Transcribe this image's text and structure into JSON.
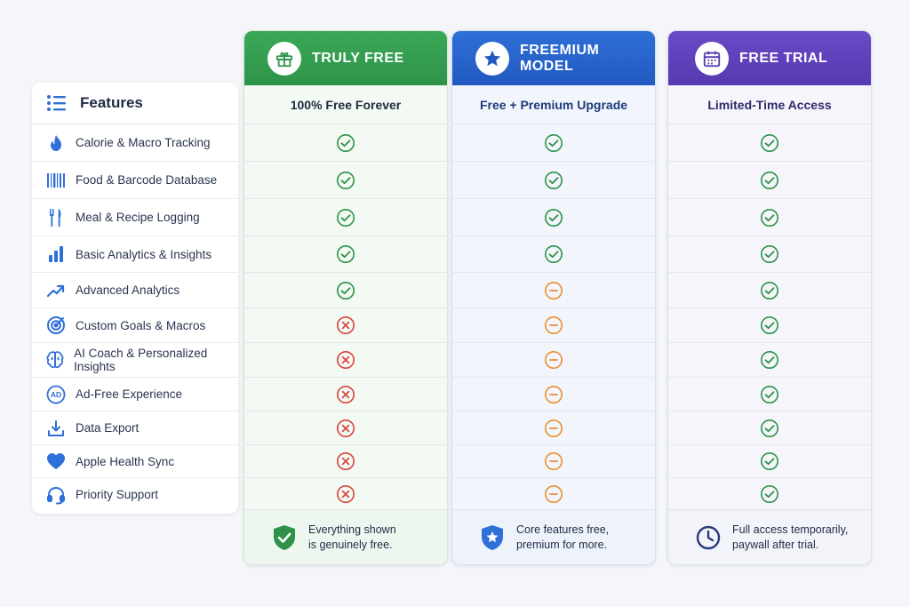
{
  "features": {
    "title": "Features",
    "rows": [
      {
        "label": "Calorie & Macro Tracking",
        "icon": "flame-icon"
      },
      {
        "label": "Food & Barcode Database",
        "icon": "barcode-icon"
      },
      {
        "label": "Meal & Recipe Logging",
        "icon": "fork-knife-icon"
      },
      {
        "label": "Basic Analytics & Insights",
        "icon": "bar-chart-icon"
      },
      {
        "label": "Advanced Analytics",
        "icon": "trend-up-icon"
      },
      {
        "label": "Custom Goals & Macros",
        "icon": "target-icon"
      },
      {
        "label": "AI Coach & Personalized Insights",
        "icon": "brain-icon"
      },
      {
        "label": "Ad-Free Experience",
        "icon": "ad-icon",
        "icon_text": "AD"
      },
      {
        "label": "Data Export",
        "icon": "download-icon"
      },
      {
        "label": "Apple Health Sync",
        "icon": "heart-icon"
      },
      {
        "label": "Priority Support",
        "icon": "headset-icon"
      }
    ]
  },
  "plans": {
    "free": {
      "title": "TRULY FREE",
      "subtitle": "100% Free Forever",
      "icon": "gift-icon",
      "color": "#2e9349",
      "status": [
        "check",
        "check",
        "check",
        "check",
        "check",
        "cross",
        "cross",
        "cross",
        "cross",
        "cross",
        "cross"
      ],
      "footer_line1": "Everything shown",
      "footer_line2": "is genuinely free.",
      "footer_icon": "shield-check-icon"
    },
    "freemium": {
      "title": "FREEMIUM MODEL",
      "subtitle": "Free + Premium Upgrade",
      "icon": "star-icon",
      "color": "#2159c0",
      "status": [
        "check",
        "check",
        "check",
        "check",
        "partial",
        "partial",
        "partial",
        "partial",
        "partial",
        "partial",
        "partial"
      ],
      "footer_line1": "Core features free,",
      "footer_line2": "premium for more.",
      "footer_icon": "shield-star-icon"
    },
    "trial": {
      "title": "FREE TRIAL",
      "subtitle": "Limited-Time Access",
      "icon": "calendar-icon",
      "color": "#5638b0",
      "status": [
        "check",
        "check",
        "check",
        "check",
        "check",
        "check",
        "check",
        "check",
        "check",
        "check",
        "check"
      ],
      "footer_line1": "Full access temporarily,",
      "footer_line2": "paywall after trial.",
      "footer_icon": "clock-icon"
    }
  },
  "colors": {
    "check": "#2e9349",
    "cross": "#d9453c",
    "partial": "#e8902e",
    "feature_icon": "#2f6fd8"
  }
}
